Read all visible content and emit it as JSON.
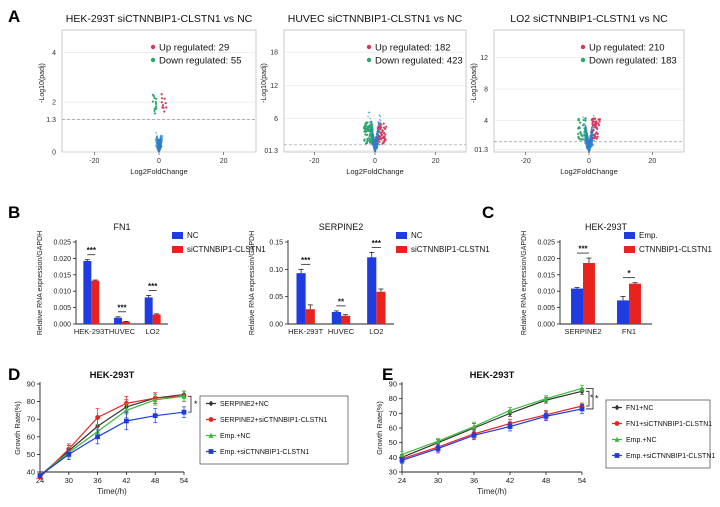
{
  "colors": {
    "blue": "#1f3ce0",
    "red": "#e8231f",
    "green": "#3cb93c",
    "dark": "#333333",
    "volcano_blue": "#2f7fc8",
    "volcano_cyan": "#5aa7de",
    "volcano_green": "#2aa86a",
    "volcano_red": "#d8365c"
  },
  "panel_labels": [
    "A",
    "B",
    "C",
    "D",
    "E"
  ],
  "chart_data": [
    {
      "type": "scatter",
      "panel": "A",
      "title": "HEK-293T siCTNNBIP1-CLSTN1 vs NC",
      "xlabel": "Log2FoldChange",
      "ylabel": "-Log10(padj)",
      "xticks": [
        "-20",
        "0",
        "20"
      ],
      "yticks": [
        "0",
        "1.3",
        "2",
        "4"
      ],
      "xlim": [
        -30,
        30
      ],
      "ylim": [
        0,
        4.9
      ],
      "legend": {
        "up": "Up regulated: 29",
        "down": "Down regulated: 55"
      }
    },
    {
      "type": "scatter",
      "panel": "A",
      "title": "HUVEC siCTNNBIP1-CLSTN1 vs NC",
      "xlabel": "Log2FoldChange",
      "ylabel": "-Log10(padj)",
      "xticks": [
        "-20",
        "0",
        "20"
      ],
      "yticks": [
        "01.3",
        "6",
        "12",
        "18"
      ],
      "xlim": [
        -30,
        30
      ],
      "ylim": [
        0,
        22
      ],
      "legend": {
        "up": "Up regulated: 182",
        "down": "Down regulated: 423"
      }
    },
    {
      "type": "scatter",
      "panel": "A",
      "title": "LO2 siCTNNBIP1-CLSTN1 vs NC",
      "xlabel": "Log2FoldChange",
      "ylabel": "-Log10(padj)",
      "xticks": [
        "-20",
        "0",
        "20"
      ],
      "yticks": [
        "01.3",
        "4",
        "8",
        "12"
      ],
      "xlim": [
        -30,
        30
      ],
      "ylim": [
        0,
        15.5
      ],
      "legend": {
        "up": "Up regulated: 210",
        "down": "Down regulated: 183"
      }
    },
    {
      "type": "bar",
      "panel": "B",
      "title": "FN1",
      "ylabel": "Relative RNA expression/GAPDH",
      "categories": [
        "HEK-293T",
        "HUVEC",
        "LO2"
      ],
      "yticks": [
        "0.000",
        "0.005",
        "0.010",
        "0.015",
        "0.020",
        "0.025"
      ],
      "ylim": [
        0,
        0.025
      ],
      "series": [
        {
          "name": "NC",
          "values": [
            0.0192,
            0.0019,
            0.0081
          ],
          "errors": [
            0.0004,
            0.0003,
            0.0006
          ]
        },
        {
          "name": "siCTNNBIP1-CLSTN1",
          "values": [
            0.0132,
            0.0007,
            0.0029
          ],
          "errors": [
            0.0002,
            0.0001,
            0.0002
          ]
        }
      ],
      "significance": [
        "***",
        "***",
        "***"
      ]
    },
    {
      "type": "bar",
      "panel": "B",
      "title": "SERPINE2",
      "ylabel": "Relative RNA expression/GAPDH",
      "categories": [
        "HEK-293T",
        "HUVEC",
        "LO2"
      ],
      "yticks": [
        "0.00",
        "0.05",
        "0.10",
        "0.15"
      ],
      "ylim": [
        0,
        0.15
      ],
      "series": [
        {
          "name": "NC",
          "values": [
            0.093,
            0.022,
            0.122
          ],
          "errors": [
            0.007,
            0.002,
            0.009
          ]
        },
        {
          "name": "siCTNNBIP1-CLSTN1",
          "values": [
            0.027,
            0.015,
            0.059
          ],
          "errors": [
            0.008,
            0.002,
            0.005
          ]
        }
      ],
      "significance": [
        "***",
        "**",
        "***"
      ]
    },
    {
      "type": "bar",
      "panel": "C",
      "title": "HEK-293T",
      "ylabel": "Relative RNA expression/GAPDH",
      "categories": [
        "SERPINE2",
        "FN1"
      ],
      "yticks": [
        "0.000",
        "0.005",
        "0.010",
        "0.015",
        "0.020",
        "0.025"
      ],
      "ylim": [
        0,
        0.025
      ],
      "series": [
        {
          "name": "Emp.",
          "values": [
            0.0108,
            0.0072
          ],
          "errors": [
            0.0003,
            0.0012
          ]
        },
        {
          "name": "CTNNBIP1-CLSTN1",
          "values": [
            0.0186,
            0.0123
          ],
          "errors": [
            0.0015,
            0.0003
          ]
        }
      ],
      "significance": [
        "***",
        "*"
      ]
    },
    {
      "type": "line",
      "panel": "D",
      "title": "HEK-293T",
      "xlabel": "Time(/h)",
      "ylabel": "Growth Rate(%)",
      "x": [
        24,
        30,
        36,
        42,
        48,
        54
      ],
      "xlim": [
        24,
        54
      ],
      "ylim": [
        40,
        90
      ],
      "yticks": [
        "40",
        "50",
        "60",
        "70",
        "80",
        "90"
      ],
      "significance": "*",
      "series": [
        {
          "name": "SERPINE2+NC",
          "color": "#333333",
          "values": [
            38,
            52,
            66,
            77,
            82,
            84
          ],
          "errors": [
            0,
            3,
            4,
            4,
            3,
            2
          ]
        },
        {
          "name": "SERPINE2+siCTNNBIP1-CLSTN1",
          "color": "#e8231f",
          "values": [
            37,
            53,
            71,
            79,
            82,
            83
          ],
          "errors": [
            0,
            3,
            5,
            4,
            3,
            3
          ]
        },
        {
          "name": "Emp.+NC",
          "color": "#3cb93c",
          "values": [
            38,
            51,
            63,
            75,
            81,
            83
          ],
          "errors": [
            0,
            3,
            4,
            4,
            3,
            3
          ]
        },
        {
          "name": "Emp.+siCTNNBIP1-CLSTN1",
          "color": "#1f3ce0",
          "values": [
            38,
            50,
            60,
            69,
            72,
            74
          ],
          "errors": [
            0,
            3,
            4,
            5,
            4,
            3
          ]
        }
      ]
    },
    {
      "type": "line",
      "panel": "E",
      "title": "HEK-293T",
      "xlabel": "Time(/h)",
      "ylabel": "Growth Rate(%)",
      "x": [
        24,
        30,
        36,
        42,
        48,
        54
      ],
      "xlim": [
        24,
        54
      ],
      "ylim": [
        30,
        90
      ],
      "yticks": [
        "30",
        "40",
        "50",
        "60",
        "70",
        "80",
        "90"
      ],
      "significance": [
        "*",
        "*"
      ],
      "series": [
        {
          "name": "FN1+NC",
          "color": "#333333",
          "values": [
            40,
            50,
            60,
            70,
            79,
            85
          ],
          "errors": [
            2,
            2,
            3,
            2,
            2,
            2
          ]
        },
        {
          "name": "FN1+siCTNNBIP1-CLSTN1",
          "color": "#e8231f",
          "values": [
            39,
            47,
            56,
            63,
            69,
            75
          ],
          "errors": [
            2,
            3,
            3,
            3,
            3,
            2
          ]
        },
        {
          "name": "Emp.+NC",
          "color": "#3cb93c",
          "values": [
            42,
            51,
            61,
            72,
            80,
            87
          ],
          "errors": [
            2,
            2,
            3,
            2,
            2,
            2
          ]
        },
        {
          "name": "Emp.+siCTNNBIP1-CLSTN1",
          "color": "#1f3ce0",
          "values": [
            38,
            46,
            55,
            61,
            68,
            73
          ],
          "errors": [
            2,
            3,
            3,
            3,
            3,
            3
          ]
        }
      ]
    }
  ]
}
